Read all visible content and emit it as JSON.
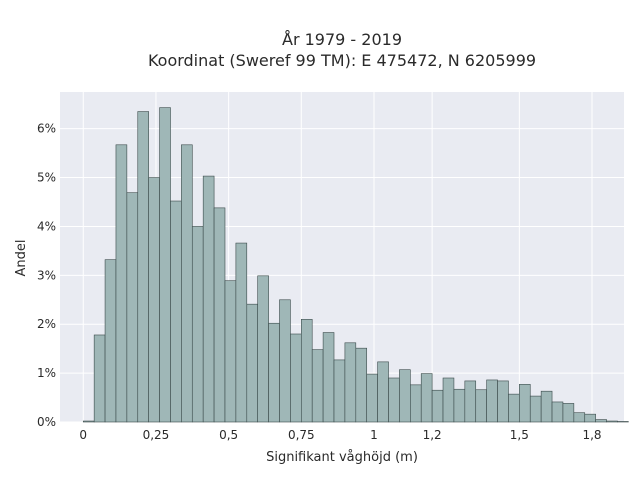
{
  "chart_data": {
    "type": "bar",
    "title_line1": "År 1979 - 2019",
    "title_line2": "Koordinat (Sweref 99 TM): E 475472, N 6205999",
    "xlabel": "Signifikant våghöjd (m)",
    "ylabel": "Andel",
    "xlim": [
      -0.08,
      1.86
    ],
    "ylim": [
      0,
      6.75
    ],
    "grid": true,
    "x_ticks": [
      {
        "value": 0,
        "label": "0"
      },
      {
        "value": 0.25,
        "label": "0,25"
      },
      {
        "value": 0.5,
        "label": "0,5"
      },
      {
        "value": 0.75,
        "label": "0,75"
      },
      {
        "value": 1,
        "label": "1"
      },
      {
        "value": 1.2,
        "label": "1,2"
      },
      {
        "value": 1.5,
        "label": "1,5"
      },
      {
        "value": 1.75,
        "label": "1,8"
      }
    ],
    "y_ticks": [
      {
        "value": 0,
        "label": "0%"
      },
      {
        "value": 1,
        "label": "1%"
      },
      {
        "value": 2,
        "label": "2%"
      },
      {
        "value": 3,
        "label": "3%"
      },
      {
        "value": 4,
        "label": "4%"
      },
      {
        "value": 5,
        "label": "5%"
      },
      {
        "value": 6,
        "label": "6%"
      }
    ],
    "bin_width": 0.0375,
    "bin_start": 0.0,
    "bar_color": "#9fb7b7",
    "bar_edge": "#3a4a4a",
    "values": [
      0.02,
      1.78,
      3.32,
      5.67,
      4.69,
      6.35,
      5.0,
      6.43,
      4.52,
      5.67,
      4.0,
      5.03,
      4.38,
      2.89,
      3.66,
      2.41,
      2.99,
      2.02,
      2.5,
      1.8,
      2.1,
      1.48,
      1.83,
      1.27,
      1.62,
      1.51,
      0.98,
      1.23,
      0.9,
      1.07,
      0.76,
      0.99,
      0.65,
      0.9,
      0.67,
      0.84,
      0.66,
      0.86,
      0.84,
      0.57,
      0.77,
      0.53,
      0.63,
      0.41,
      0.38,
      0.19,
      0.16,
      0.05,
      0.02,
      0.01
    ]
  }
}
